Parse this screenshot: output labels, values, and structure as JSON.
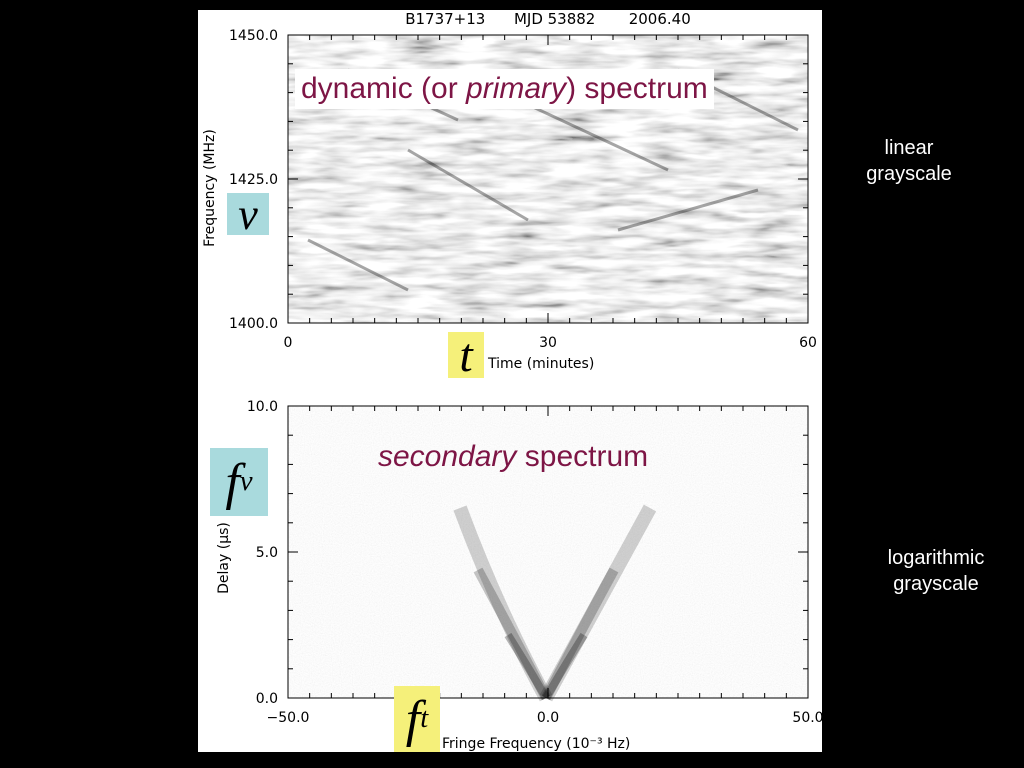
{
  "chart_data": [
    {
      "type": "heatmap",
      "title": "B1737+13      MJD 53882       2006.40",
      "overlay_label": {
        "prefix": "dynamic (or ",
        "emphasis": "primary",
        "suffix": ") spectrum"
      },
      "xlabel": "Time (minutes)",
      "ylabel": "Frequency (MHz)",
      "xlim": [
        0,
        60
      ],
      "ylim": [
        1400.0,
        1450.0
      ],
      "x_ticks": [
        "0",
        "30",
        "60"
      ],
      "y_ticks": [
        "1400.0",
        "1425.0",
        "1450.0"
      ],
      "x_tick_values": [
        0,
        30,
        60
      ],
      "y_tick_values": [
        1400.0,
        1425.0,
        1450.0
      ],
      "variable": "ν",
      "note": "linear grayscale"
    },
    {
      "type": "heatmap",
      "overlay_label": {
        "emphasis": "secondary",
        "suffix": " spectrum"
      },
      "xlabel": "Fringe Frequency (10⁻³ Hz)",
      "ylabel": "Delay (μs)",
      "xlim": [
        -50.0,
        50.0
      ],
      "ylim": [
        0.0,
        10.0
      ],
      "x_ticks": [
        "−50.0",
        "0.0",
        "50.0"
      ],
      "y_ticks": [
        "0.0",
        "5.0",
        "10.0"
      ],
      "x_tick_values": [
        -50.0,
        0.0,
        50.0
      ],
      "y_tick_values": [
        0.0,
        5.0,
        10.0
      ],
      "variable_base": "f",
      "variable_sub": "ν",
      "note": "logarithmic grayscale"
    }
  ],
  "var_t": "t",
  "var_ft_base": "f",
  "var_ft_sub": "t",
  "notes": {
    "linear": "linear grayscale",
    "log": "logarithmic grayscale"
  }
}
